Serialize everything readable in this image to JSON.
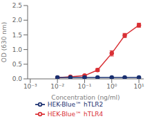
{
  "chart_data": {
    "type": "line",
    "title": "",
    "xlabel": "Concentration (ng/ml)",
    "ylabel": "OD (630 nm)",
    "log": "x",
    "grid": false,
    "legend": "bottom",
    "marker": "circle",
    "xlim": [
      0.0008,
      15.0
    ],
    "xticks": [
      {
        "value": 0.001,
        "label": "10⁻³"
      },
      {
        "value": 0.01,
        "label": "10⁻²"
      },
      {
        "value": 0.1,
        "label": "10⁻¹"
      },
      {
        "value": 1.0,
        "label": "10⁰"
      },
      {
        "value": 10.0,
        "label": "10¹"
      }
    ],
    "ylim": [
      0,
      2.5
    ],
    "yticks": [
      {
        "value": 0.0,
        "label": "0.0"
      },
      0.5,
      {
        "value": 1.0,
        "label": "1.0"
      },
      1.5,
      {
        "value": 2.0,
        "label": "2.0"
      },
      2.5
    ],
    "series": [
      {
        "name": "HEK-Blue™ hTLR4",
        "color": "#d93035",
        "x": [
          0.01,
          0.03,
          0.1,
          0.3,
          1.0,
          3.0,
          10.0
        ],
        "values": [
          0.04,
          0.07,
          0.11,
          0.3,
          0.87,
          1.48,
          1.83
        ],
        "errors": [
          0.01,
          0.015,
          0.02,
          0.05,
          0.09,
          0.07,
          0.07
        ]
      },
      {
        "name": "HEK-Blue™ hTLR2",
        "color": "#1a3070",
        "x": [
          0.01,
          0.03,
          0.1,
          0.3,
          1.0,
          3.0,
          10.0
        ],
        "values": [
          0.05,
          0.05,
          0.05,
          0.05,
          0.05,
          0.05,
          0.05
        ],
        "errors": [
          0.01,
          0.01,
          0.01,
          0.01,
          0.01,
          0.01,
          0.01
        ]
      }
    ]
  }
}
